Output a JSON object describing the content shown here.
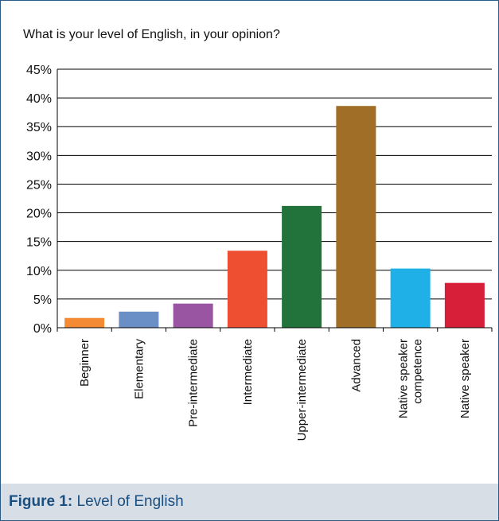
{
  "chart_data": {
    "type": "bar",
    "title": "What is your level of English, in your opinion?",
    "categories": [
      "Beginner",
      "Elementary",
      "Pre-intermediate",
      "Intermediate",
      "Upper-intermediate",
      "Advanced",
      "Native speaker competence",
      "Native speaker"
    ],
    "values": [
      1.7,
      2.8,
      4.2,
      13.4,
      21.2,
      38.6,
      10.3,
      7.8
    ],
    "colors": [
      "#f58a34",
      "#6a8ec6",
      "#9a55a2",
      "#ef4f31",
      "#21733b",
      "#a06e26",
      "#1eb0e6",
      "#d81f3a"
    ],
    "yticks": [
      "0%",
      "5%",
      "10%",
      "15%",
      "20%",
      "25%",
      "30%",
      "35%",
      "40%",
      "45%"
    ],
    "ylim": [
      0,
      45
    ],
    "grid": true,
    "xlabel": "",
    "ylabel": ""
  },
  "caption": {
    "lead": "Figure 1:",
    "text": "Level of English"
  }
}
